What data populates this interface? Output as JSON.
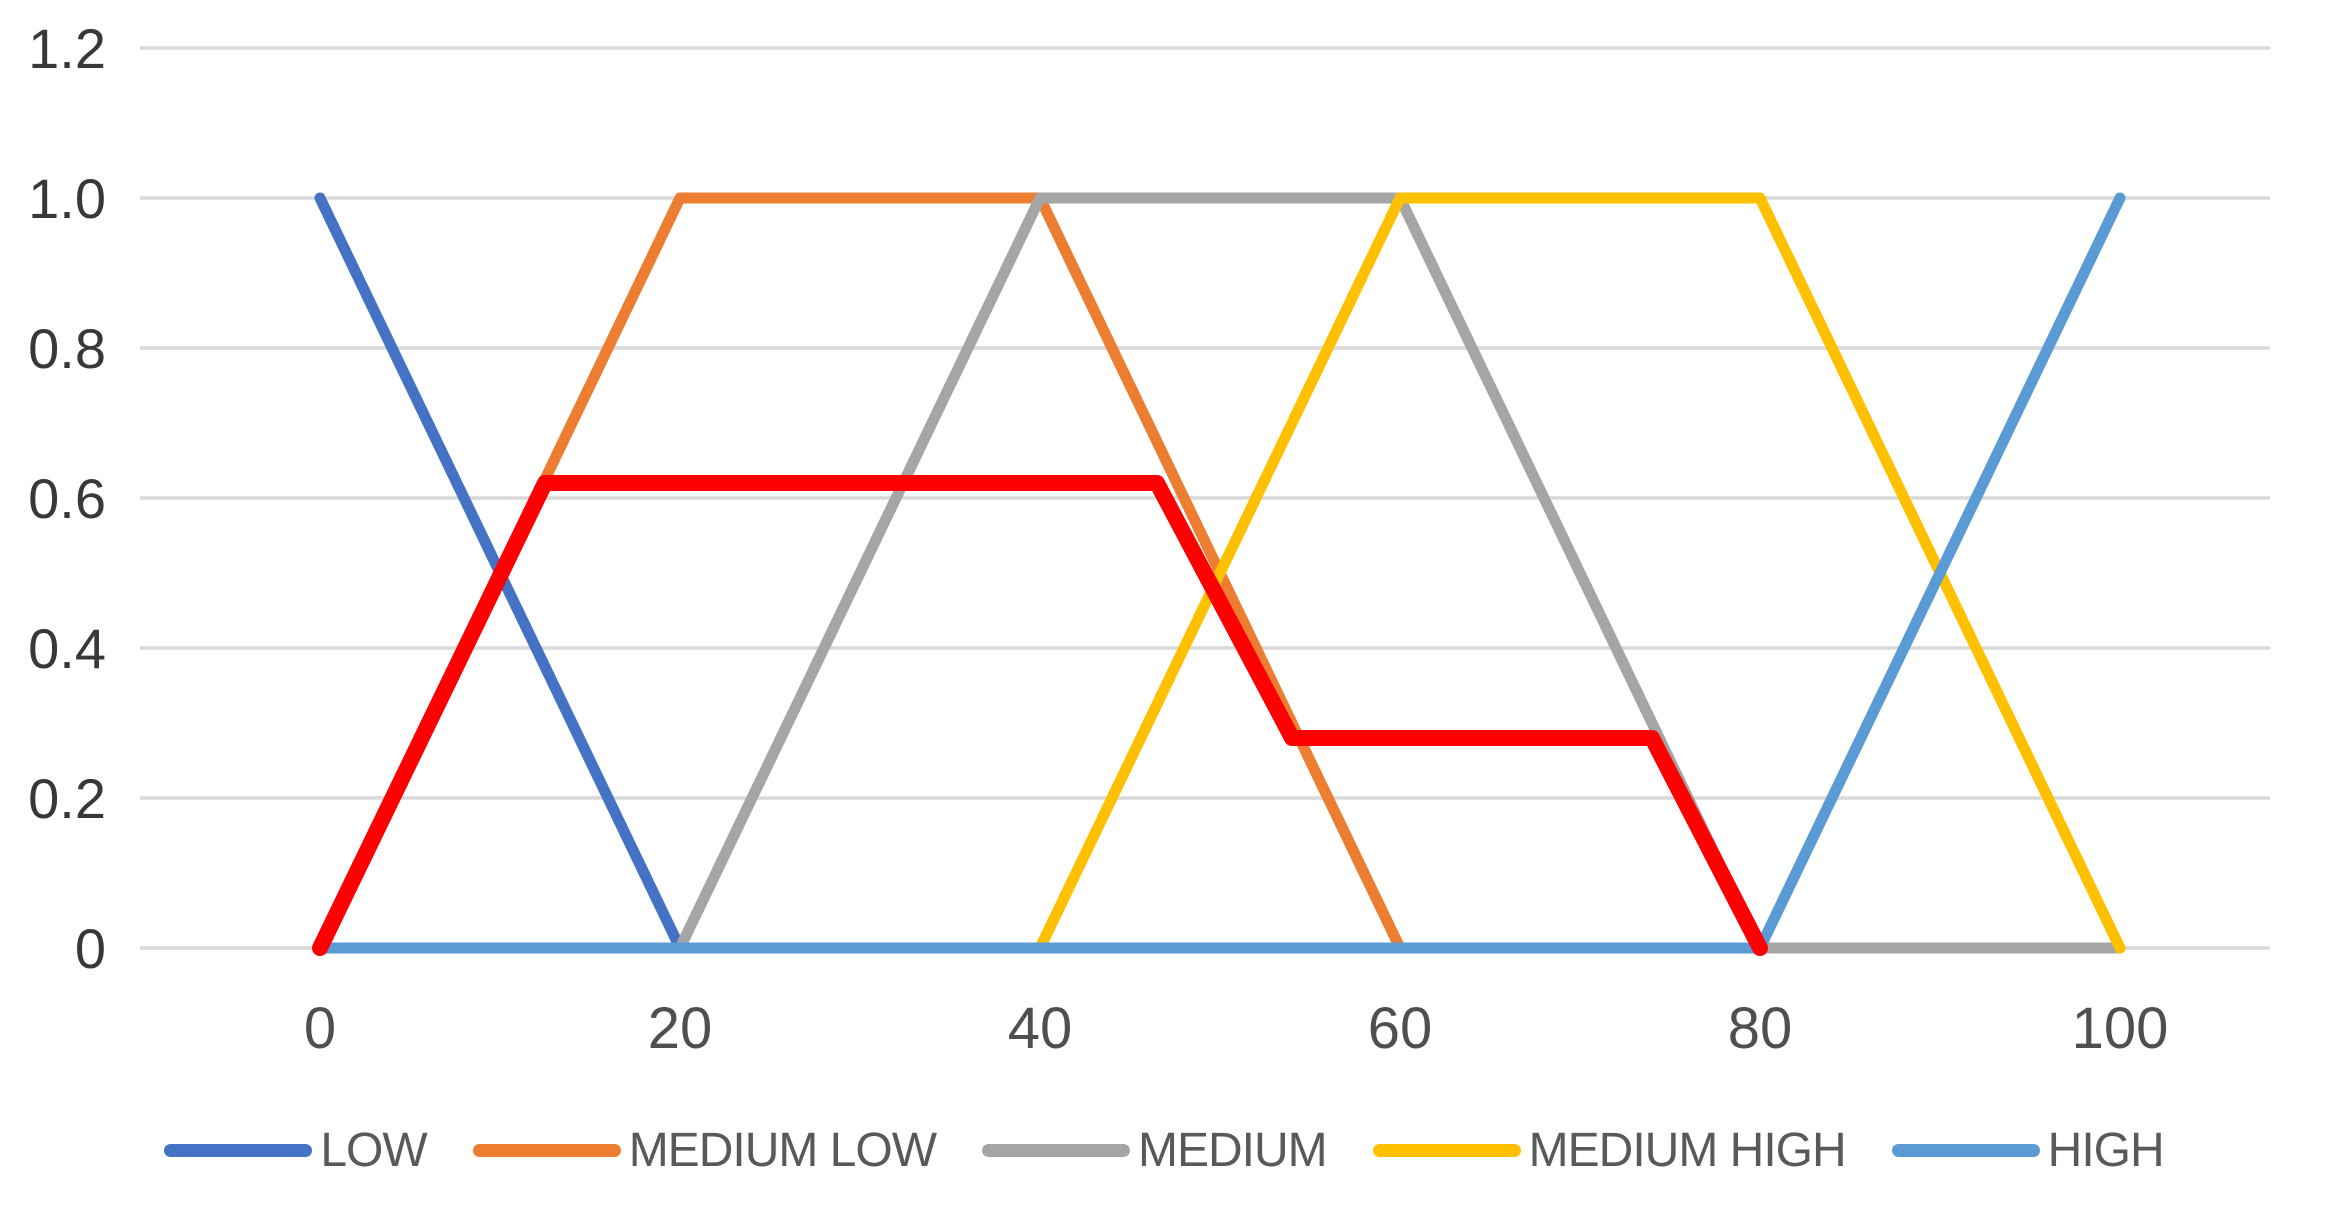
{
  "chart_data": {
    "type": "line",
    "title": "",
    "xlabel": "",
    "ylabel": "",
    "xlim": [
      -10,
      108.3
    ],
    "ylim": [
      0,
      1.2
    ],
    "grid": "horizontal-only",
    "legend_position": "bottom",
    "x_ticks": [
      0,
      20,
      40,
      60,
      80,
      100
    ],
    "y_ticks": [
      0,
      0.2,
      0.4,
      0.6,
      0.8,
      1.0,
      1.2
    ],
    "series": [
      {
        "id": "low",
        "name": "LOW",
        "color": "#4472C4",
        "width": 11,
        "in_legend": true,
        "points": [
          [
            0,
            1
          ],
          [
            20,
            0
          ],
          [
            100,
            0
          ]
        ]
      },
      {
        "id": "medium-low",
        "name": "MEDIUM LOW",
        "color": "#ED7D31",
        "width": 11,
        "in_legend": true,
        "points": [
          [
            0,
            0
          ],
          [
            20,
            1
          ],
          [
            40,
            1
          ],
          [
            60,
            0
          ],
          [
            100,
            0
          ]
        ]
      },
      {
        "id": "medium",
        "name": "MEDIUM",
        "color": "#A5A5A5",
        "width": 11,
        "in_legend": true,
        "points": [
          [
            0,
            0
          ],
          [
            20,
            0
          ],
          [
            40,
            1
          ],
          [
            60,
            1
          ],
          [
            80,
            0
          ],
          [
            100,
            0
          ]
        ]
      },
      {
        "id": "medium-high",
        "name": "MEDIUM HIGH",
        "color": "#FFC000",
        "width": 11,
        "in_legend": true,
        "points": [
          [
            0,
            0
          ],
          [
            40,
            0
          ],
          [
            60,
            1
          ],
          [
            80,
            1
          ],
          [
            100,
            0
          ]
        ]
      },
      {
        "id": "high",
        "name": "HIGH",
        "color": "#5B9BD5",
        "width": 11,
        "in_legend": true,
        "points": [
          [
            0,
            0
          ],
          [
            80,
            0
          ],
          [
            100,
            1
          ]
        ]
      },
      {
        "id": "output",
        "name": "",
        "color": "#FE0000",
        "width": 16,
        "in_legend": false,
        "points": [
          [
            0,
            0
          ],
          [
            12.5,
            0.62
          ],
          [
            46.5,
            0.62
          ],
          [
            54,
            0.28
          ],
          [
            74,
            0.28
          ],
          [
            80,
            0
          ]
        ]
      }
    ]
  },
  "axes": {
    "x_tick_labels": [
      "0",
      "20",
      "40",
      "60",
      "80",
      "100"
    ],
    "y_tick_labels": [
      "0",
      "0.2",
      "0.4",
      "0.6",
      "0.8",
      "1.0",
      "1.2"
    ]
  },
  "colors": {
    "gridline": "#D9D9D9",
    "y_tick_label": "#383838",
    "x_tick_label": "#4F4F4F",
    "legend_text": "#595959",
    "background": "#FFFFFF"
  }
}
